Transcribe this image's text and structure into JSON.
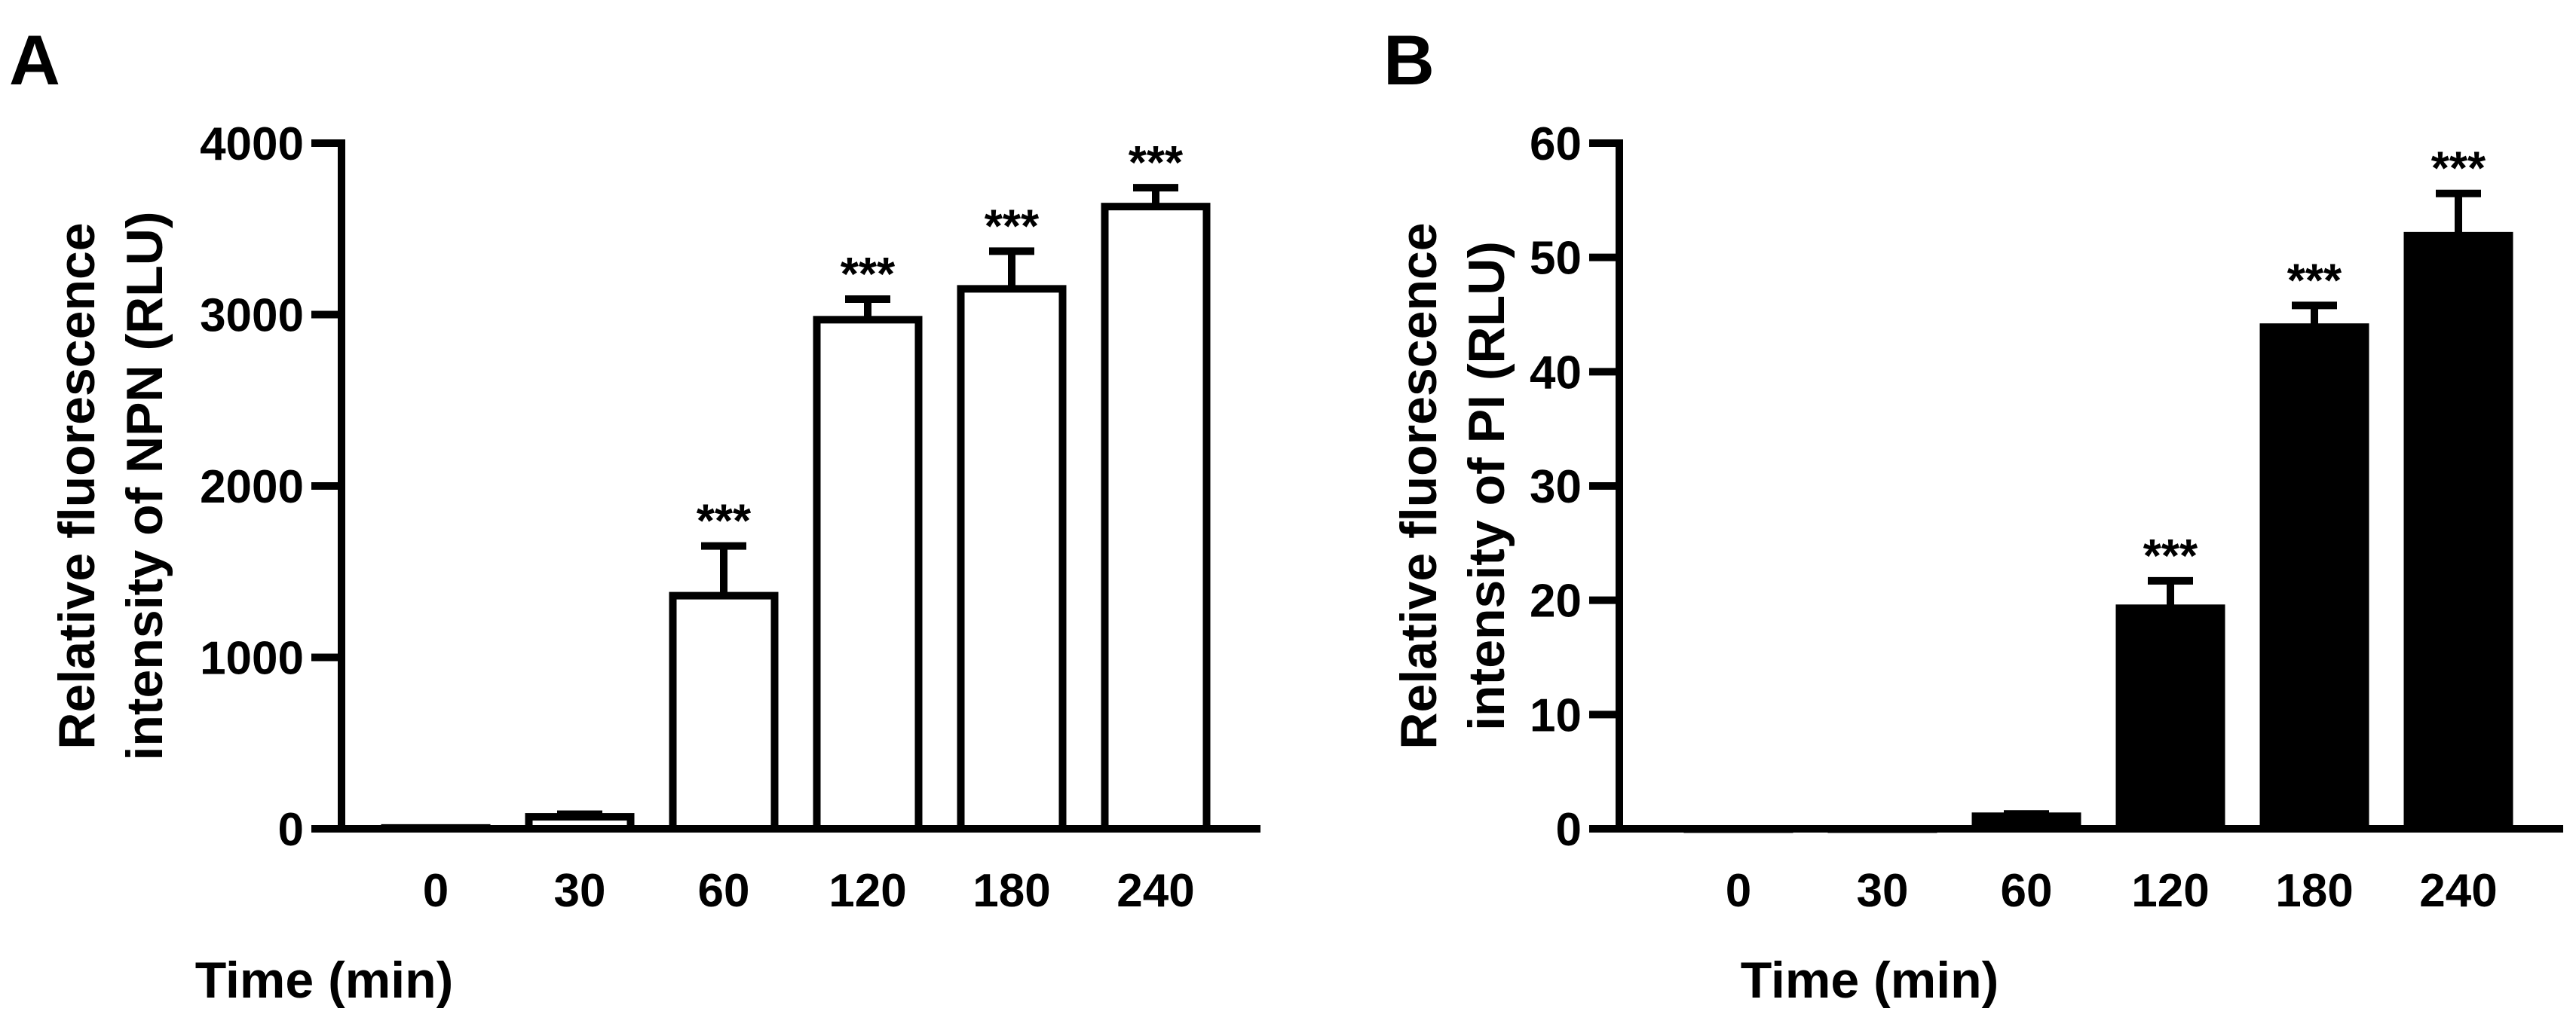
{
  "panels": [
    {
      "label": "A",
      "chart_data": {
        "type": "bar",
        "categories": [
          "0",
          "30",
          "60",
          "120",
          "180",
          "240"
        ],
        "values": [
          5,
          70,
          1360,
          2970,
          3150,
          3630
        ],
        "errors": [
          0,
          15,
          290,
          120,
          220,
          110
        ],
        "significance": [
          "",
          "",
          "***",
          "***",
          "***",
          "***"
        ],
        "xlabel": "Time (min)",
        "ylabel_lines": [
          "Relative fluorescence",
          "intensity of NPN (RLU)"
        ],
        "ylim": [
          0,
          4000
        ],
        "yticks": [
          "0",
          "1000",
          "2000",
          "3000",
          "4000"
        ],
        "bar_fill": "#ffffff",
        "bar_stroke": "#000000",
        "grid": false,
        "legend": "none"
      }
    },
    {
      "label": "B",
      "chart_data": {
        "type": "bar",
        "categories": [
          "0",
          "30",
          "60",
          "120",
          "180",
          "240"
        ],
        "values": [
          0,
          0,
          1.1,
          19.3,
          43.9,
          51.9
        ],
        "errors": [
          0,
          0,
          0.2,
          2.4,
          1.9,
          3.7
        ],
        "significance": [
          "",
          "",
          "",
          "***",
          "***",
          "***"
        ],
        "xlabel": "Time (min)",
        "ylabel_lines": [
          "Relative fluorescence",
          "intensity of PI (RLU)"
        ],
        "ylim": [
          0,
          60
        ],
        "yticks": [
          "0",
          "10",
          "20",
          "30",
          "40",
          "50",
          "60"
        ],
        "bar_fill": "#000000",
        "bar_stroke": "#000000",
        "grid": false,
        "legend": "none"
      }
    }
  ]
}
